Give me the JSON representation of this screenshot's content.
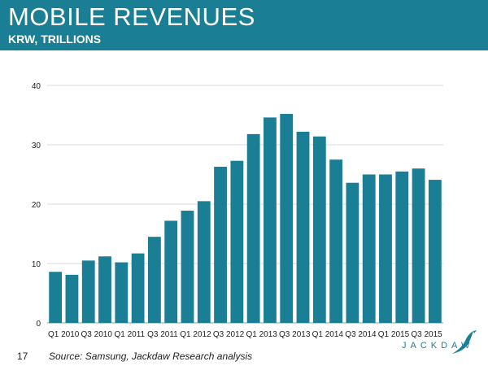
{
  "header": {
    "title": "MOBILE REVENUES",
    "subtitle": "KRW, TRILLIONS"
  },
  "footer": {
    "page_number": "17",
    "source": "Source: Samsung, Jackdaw Research analysis",
    "brand": "JACKDAW"
  },
  "colors": {
    "header_bg": "#1a7f95",
    "bar": "#1a7f95",
    "grid": "#d9d9d9"
  },
  "chart_data": {
    "type": "bar",
    "categories": [
      "Q1 2010",
      "Q2 2010",
      "Q3 2010",
      "Q4 2010",
      "Q1 2011",
      "Q2 2011",
      "Q3 2011",
      "Q4 2011",
      "Q1 2012",
      "Q2 2012",
      "Q3 2012",
      "Q4 2012",
      "Q1 2013",
      "Q2 2013",
      "Q3 2013",
      "Q4 2013",
      "Q1 2014",
      "Q2 2014",
      "Q3 2014",
      "Q4 2014",
      "Q1 2015",
      "Q2 2015",
      "Q3 2015",
      "Q4 2015"
    ],
    "x_tick_labels": [
      "Q1 2010",
      "Q3 2010",
      "Q1 2011",
      "Q3 2011",
      "Q1 2012",
      "Q3 2012",
      "Q1 2013",
      "Q3 2013",
      "Q1 2014",
      "Q3 2014",
      "Q1 2015",
      "Q3 2015"
    ],
    "values": [
      8.6,
      8.1,
      10.5,
      11.2,
      10.2,
      11.7,
      14.5,
      17.2,
      18.9,
      20.5,
      26.3,
      27.3,
      31.8,
      34.6,
      35.2,
      32.2,
      31.4,
      27.5,
      23.6,
      25.0,
      25.0,
      25.5,
      26.0,
      24.1
    ],
    "ylim": [
      0,
      40
    ],
    "yticks": [
      0,
      10,
      20,
      30,
      40
    ],
    "grid": true,
    "legend": "none"
  }
}
